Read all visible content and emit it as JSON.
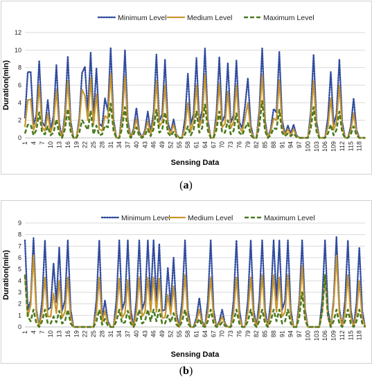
{
  "chart_data": [
    {
      "panel_label": "a",
      "type": "line",
      "xlabel": "Sensing Data",
      "ylabel": "Duration(min)",
      "ylim": [
        0,
        12
      ],
      "yticks": [
        0,
        2,
        4,
        6,
        8,
        10,
        12
      ],
      "xlim": [
        1,
        120
      ],
      "xticks": [
        1,
        4,
        7,
        10,
        13,
        16,
        19,
        22,
        25,
        28,
        31,
        34,
        37,
        40,
        43,
        46,
        49,
        52,
        55,
        58,
        61,
        64,
        67,
        70,
        73,
        76,
        79,
        82,
        85,
        88,
        91,
        94,
        97,
        100,
        103,
        106,
        109,
        112,
        115,
        118
      ],
      "grid": "horizontal",
      "legend": "top",
      "series": [
        {
          "name": "Minimum Level",
          "style": "dotted",
          "color": "#2e4a9e",
          "peaks": [
            [
              2,
              7.5
            ],
            [
              3,
              7.5
            ],
            [
              6,
              8.8
            ],
            [
              9,
              4.3
            ],
            [
              12,
              8.3
            ],
            [
              16,
              9.3
            ],
            [
              21,
              7.4
            ],
            [
              22,
              8.1
            ],
            [
              24,
              9.7
            ],
            [
              26,
              7.9
            ],
            [
              29,
              4.5
            ],
            [
              31,
              10.3
            ],
            [
              36,
              10.0
            ],
            [
              40,
              3.4
            ],
            [
              44,
              3.0
            ],
            [
              47,
              9.5
            ],
            [
              50,
              8.9
            ],
            [
              53,
              2.1
            ],
            [
              58,
              7.3
            ],
            [
              61,
              9.1
            ],
            [
              64,
              10.2
            ],
            [
              69,
              9.2
            ],
            [
              72,
              8.5
            ],
            [
              75,
              8.8
            ],
            [
              78,
              3.6
            ],
            [
              79,
              6.8
            ],
            [
              84,
              10.2
            ],
            [
              88,
              3.3
            ],
            [
              90,
              9.8
            ],
            [
              93,
              1.4
            ],
            [
              95,
              1.5
            ],
            [
              102,
              9.5
            ],
            [
              108,
              7.5
            ],
            [
              111,
              8.9
            ],
            [
              116,
              4.5
            ]
          ]
        },
        {
          "name": "Medium Level",
          "style": "solid",
          "color": "#c8962e",
          "peaks": [
            [
              2,
              4.3
            ],
            [
              3,
              4.4
            ],
            [
              6,
              6.0
            ],
            [
              9,
              2.8
            ],
            [
              12,
              5.5
            ],
            [
              16,
              6.5
            ],
            [
              21,
              5.5
            ],
            [
              22,
              4.8
            ],
            [
              24,
              6.8
            ],
            [
              26,
              5.0
            ],
            [
              29,
              2.5
            ],
            [
              31,
              7.3
            ],
            [
              36,
              7.0
            ],
            [
              40,
              2.2
            ],
            [
              44,
              1.9
            ],
            [
              47,
              6.5
            ],
            [
              50,
              6.0
            ],
            [
              53,
              1.5
            ],
            [
              58,
              4.0
            ],
            [
              61,
              6.0
            ],
            [
              64,
              7.2
            ],
            [
              69,
              6.2
            ],
            [
              72,
              5.3
            ],
            [
              75,
              6.0
            ],
            [
              78,
              2.2
            ],
            [
              79,
              4.0
            ],
            [
              84,
              7.2
            ],
            [
              88,
              2.2
            ],
            [
              90,
              6.6
            ],
            [
              93,
              1.0
            ],
            [
              95,
              1.0
            ],
            [
              102,
              6.5
            ],
            [
              108,
              4.5
            ],
            [
              111,
              6.0
            ],
            [
              116,
              2.8
            ]
          ]
        },
        {
          "name": "Maximum Level",
          "style": "dashed",
          "color": "#4a7a1e",
          "peaks": [
            [
              2,
              1.5
            ],
            [
              3,
              1.5
            ],
            [
              6,
              2.9
            ],
            [
              9,
              1.3
            ],
            [
              12,
              2.1
            ],
            [
              16,
              3.3
            ],
            [
              21,
              2.0
            ],
            [
              22,
              1.5
            ],
            [
              24,
              3.1
            ],
            [
              26,
              1.4
            ],
            [
              29,
              1.4
            ],
            [
              31,
              3.9
            ],
            [
              36,
              3.5
            ],
            [
              40,
              1.2
            ],
            [
              44,
              1.0
            ],
            [
              47,
              3.2
            ],
            [
              50,
              2.9
            ],
            [
              53,
              0.7
            ],
            [
              58,
              1.3
            ],
            [
              61,
              3.0
            ],
            [
              64,
              3.8
            ],
            [
              69,
              3.0
            ],
            [
              72,
              2.0
            ],
            [
              75,
              2.8
            ],
            [
              78,
              1.1
            ],
            [
              79,
              1.7
            ],
            [
              84,
              4.2
            ],
            [
              88,
              1.1
            ],
            [
              90,
              3.2
            ],
            [
              93,
              0.5
            ],
            [
              95,
              0.5
            ],
            [
              102,
              3.5
            ],
            [
              108,
              1.5
            ],
            [
              111,
              3.0
            ],
            [
              116,
              1.3
            ]
          ]
        }
      ]
    },
    {
      "panel_label": "b",
      "type": "line",
      "xlabel": "Sensing Data",
      "ylabel": "Duration(min)",
      "ylim": [
        0,
        9
      ],
      "yticks": [
        0,
        1,
        2,
        3,
        4,
        5,
        6,
        7,
        8,
        9
      ],
      "xlim": [
        1,
        120
      ],
      "xticks": [
        1,
        4,
        7,
        10,
        13,
        16,
        19,
        22,
        25,
        28,
        31,
        34,
        37,
        40,
        43,
        46,
        49,
        52,
        55,
        58,
        61,
        64,
        67,
        70,
        73,
        76,
        79,
        82,
        85,
        88,
        91,
        94,
        97,
        100,
        103,
        106,
        109,
        112,
        115,
        118
      ],
      "grid": "horizontal",
      "legend": "top",
      "series": [
        {
          "name": "Minimum Level",
          "style": "dotted",
          "color": "#2e4a9e",
          "peaks": [
            [
              1,
              7.5
            ],
            [
              4,
              7.7
            ],
            [
              8,
              7.5
            ],
            [
              11,
              5.5
            ],
            [
              13,
              6.9
            ],
            [
              16,
              7.5
            ],
            [
              27,
              7.5
            ],
            [
              29,
              2.3
            ],
            [
              34,
              7.5
            ],
            [
              37,
              7.5
            ],
            [
              41,
              7.5
            ],
            [
              44,
              7.5
            ],
            [
              46,
              7.5
            ],
            [
              48,
              7.2
            ],
            [
              51,
              5.1
            ],
            [
              53,
              6.0
            ],
            [
              57,
              7.5
            ],
            [
              62,
              2.5
            ],
            [
              66,
              7.5
            ],
            [
              70,
              1.5
            ],
            [
              75,
              7.5
            ],
            [
              80,
              7.5
            ],
            [
              84,
              7.5
            ],
            [
              88,
              7.5
            ],
            [
              90,
              7.5
            ],
            [
              93,
              7.5
            ],
            [
              98,
              7.5
            ],
            [
              106,
              7.5
            ],
            [
              110,
              7.8
            ],
            [
              114,
              7.5
            ],
            [
              118,
              6.9
            ]
          ]
        },
        {
          "name": "Medium Level",
          "style": "solid",
          "color": "#c8962e",
          "peaks": [
            [
              1,
              4.5
            ],
            [
              4,
              6.2
            ],
            [
              8,
              4.3
            ],
            [
              11,
              2.9
            ],
            [
              13,
              4.0
            ],
            [
              16,
              4.3
            ],
            [
              27,
              4.3
            ],
            [
              29,
              1.4
            ],
            [
              34,
              4.2
            ],
            [
              37,
              4.1
            ],
            [
              41,
              4.3
            ],
            [
              44,
              4.3
            ],
            [
              46,
              4.3
            ],
            [
              48,
              4.2
            ],
            [
              51,
              2.8
            ],
            [
              53,
              3.5
            ],
            [
              57,
              4.5
            ],
            [
              62,
              1.5
            ],
            [
              66,
              4.3
            ],
            [
              70,
              0.9
            ],
            [
              75,
              4.3
            ],
            [
              80,
              4.3
            ],
            [
              84,
              4.5
            ],
            [
              88,
              4.5
            ],
            [
              90,
              4.3
            ],
            [
              93,
              4.5
            ],
            [
              98,
              5.3
            ],
            [
              106,
              4.5
            ],
            [
              110,
              6.2
            ],
            [
              114,
              4.5
            ],
            [
              118,
              4.0
            ]
          ]
        },
        {
          "name": "Maximum Level",
          "style": "dashed",
          "color": "#4a7a1e",
          "peaks": [
            [
              1,
              4.5
            ],
            [
              4,
              1.5
            ],
            [
              8,
              1.5
            ],
            [
              11,
              0.9
            ],
            [
              13,
              1.4
            ],
            [
              16,
              1.5
            ],
            [
              27,
              1.5
            ],
            [
              29,
              0.7
            ],
            [
              34,
              1.5
            ],
            [
              37,
              1.4
            ],
            [
              41,
              1.5
            ],
            [
              44,
              1.5
            ],
            [
              46,
              1.5
            ],
            [
              48,
              1.5
            ],
            [
              51,
              1.0
            ],
            [
              53,
              1.2
            ],
            [
              57,
              1.5
            ],
            [
              62,
              0.7
            ],
            [
              66,
              1.5
            ],
            [
              70,
              0.4
            ],
            [
              75,
              1.5
            ],
            [
              80,
              1.5
            ],
            [
              84,
              1.5
            ],
            [
              88,
              1.5
            ],
            [
              90,
              1.5
            ],
            [
              93,
              1.5
            ],
            [
              98,
              3.0
            ],
            [
              106,
              4.5
            ],
            [
              110,
              1.5
            ],
            [
              114,
              1.5
            ],
            [
              118,
              1.5
            ]
          ]
        }
      ]
    }
  ]
}
